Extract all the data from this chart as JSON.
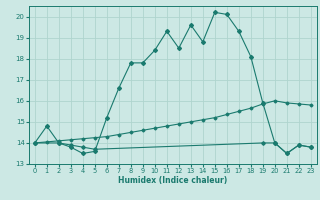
{
  "xlabel": "Humidex (Indice chaleur)",
  "bg_color": "#cce8e4",
  "line_color": "#1a7a6e",
  "grid_color": "#afd4ce",
  "xlim": [
    -0.5,
    23.5
  ],
  "ylim": [
    13,
    20.5
  ],
  "yticks": [
    13,
    14,
    15,
    16,
    17,
    18,
    19,
    20
  ],
  "xticks": [
    0,
    1,
    2,
    3,
    4,
    5,
    6,
    7,
    8,
    9,
    10,
    11,
    12,
    13,
    14,
    15,
    16,
    17,
    18,
    19,
    20,
    21,
    22,
    23
  ],
  "line1_x": [
    0,
    1,
    2,
    3,
    4,
    5,
    6,
    7,
    8,
    9,
    10,
    11,
    12,
    13,
    14,
    15,
    16,
    17,
    18,
    19,
    20,
    21,
    22,
    23
  ],
  "line1_y": [
    14.0,
    14.8,
    14.0,
    13.8,
    13.5,
    13.6,
    15.2,
    16.6,
    17.8,
    17.8,
    18.4,
    19.3,
    18.5,
    19.6,
    18.8,
    20.2,
    20.1,
    19.3,
    18.1,
    15.9,
    14.0,
    13.5,
    13.9,
    13.8
  ],
  "line2_x": [
    0,
    2,
    3,
    4,
    5,
    19,
    20,
    21,
    22,
    23
  ],
  "line2_y": [
    14.0,
    14.0,
    13.9,
    13.8,
    13.7,
    14.0,
    14.0,
    13.5,
    13.9,
    13.8
  ],
  "line3_x": [
    0,
    1,
    2,
    3,
    4,
    5,
    6,
    7,
    8,
    9,
    10,
    11,
    12,
    13,
    14,
    15,
    16,
    17,
    18,
    19,
    20,
    21,
    22,
    23
  ],
  "line3_y": [
    14.0,
    14.05,
    14.1,
    14.15,
    14.2,
    14.25,
    14.3,
    14.4,
    14.5,
    14.6,
    14.7,
    14.8,
    14.9,
    15.0,
    15.1,
    15.2,
    15.35,
    15.5,
    15.65,
    15.85,
    16.0,
    15.9,
    15.85,
    15.8
  ]
}
